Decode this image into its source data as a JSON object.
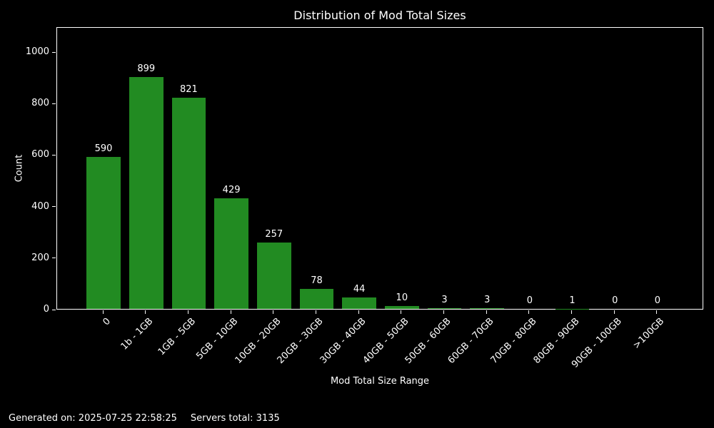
{
  "figure": {
    "background": "#000000",
    "text_color": "#ffffff",
    "footer": {
      "generated": "Generated on: 2025-07-25 22:58:25",
      "servers_total": "Servers total: 3135"
    }
  },
  "chart_data": {
    "type": "bar",
    "title": "Distribution of Mod Total Sizes",
    "xlabel": "Mod Total Size Range",
    "ylabel": "Count",
    "categories": [
      "0",
      "1b - 1GB",
      "1GB - 5GB",
      "5GB - 10GB",
      "10GB - 20GB",
      "20GB - 30GB",
      "30GB - 40GB",
      "40GB - 50GB",
      "50GB - 60GB",
      "60GB - 70GB",
      "70GB - 80GB",
      "80GB - 90GB",
      "90GB - 100GB",
      ">100GB"
    ],
    "values": [
      590,
      899,
      821,
      429,
      257,
      78,
      44,
      10,
      3,
      3,
      0,
      1,
      0,
      0
    ],
    "bar_color": "#228B22",
    "ylim": [
      0,
      1097
    ],
    "yticks": [
      0,
      200,
      400,
      600,
      800,
      1000
    ],
    "grid": false,
    "legend": false,
    "value_labels_shown": true,
    "x_tick_rotation_deg": 45
  }
}
